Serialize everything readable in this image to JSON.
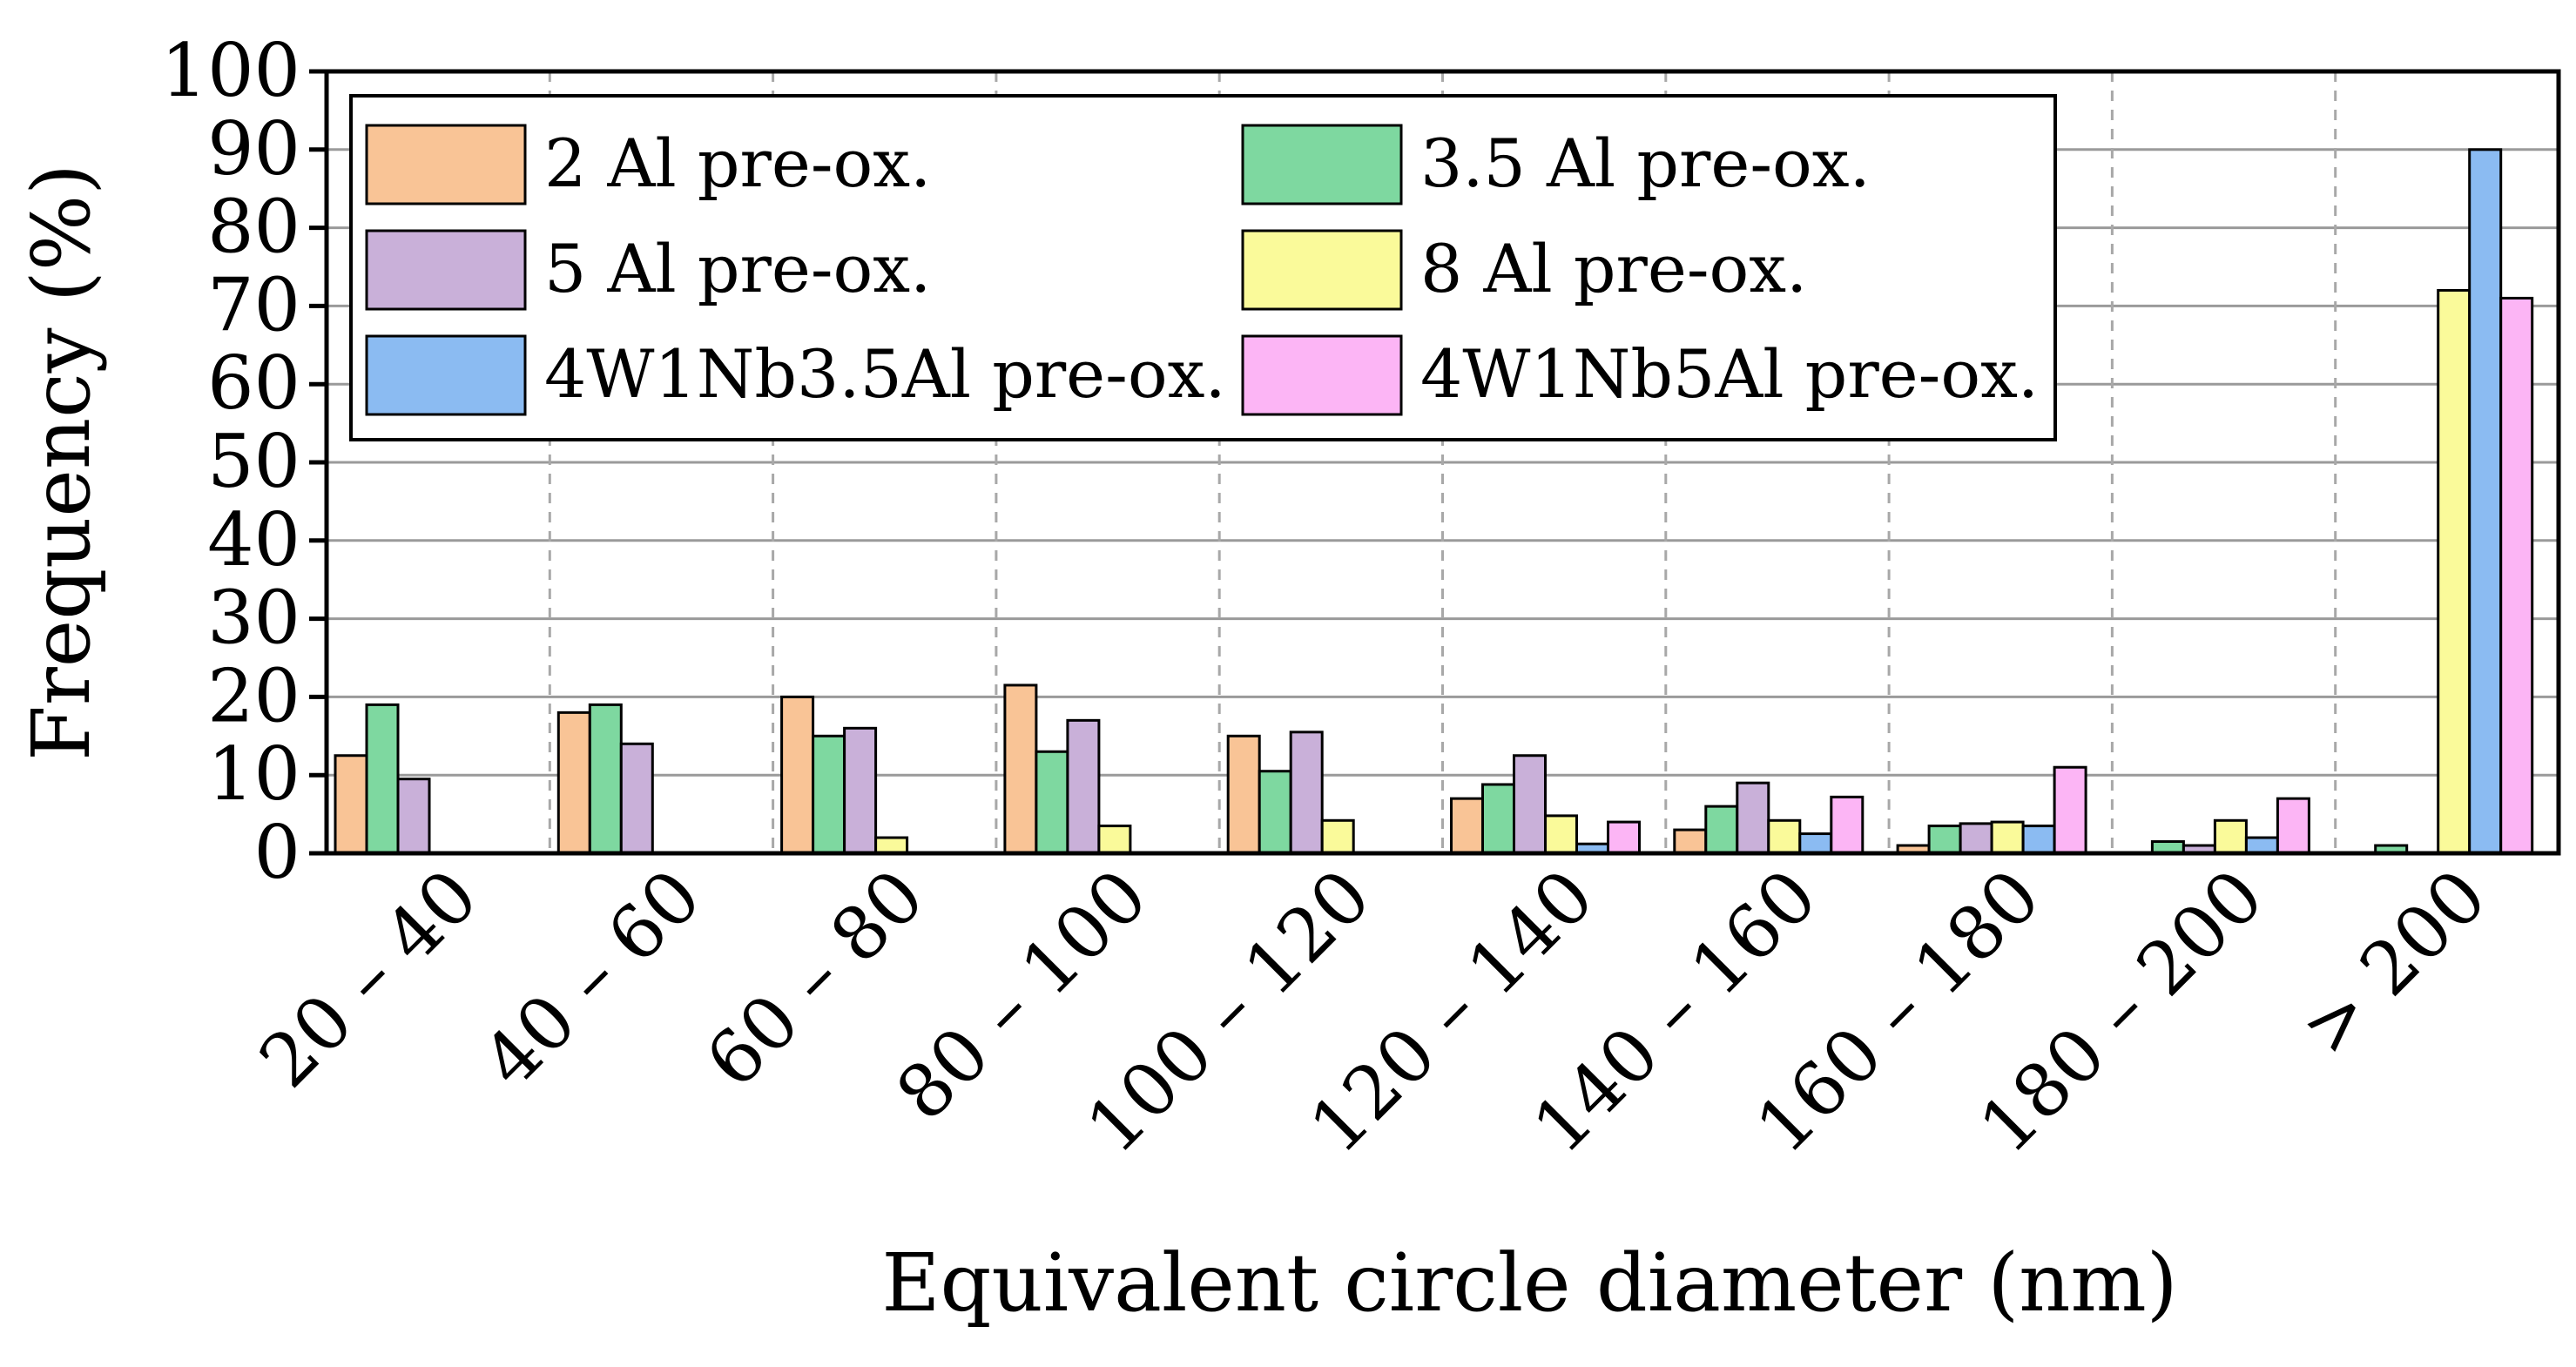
{
  "chart_data": {
    "type": "bar",
    "title": "",
    "xlabel": "Equivalent circle diameter (nm)",
    "ylabel": "Frequency (%)",
    "ylim": [
      0,
      100
    ],
    "yticks": [
      "0",
      "10",
      "20",
      "30",
      "40",
      "50",
      "60",
      "70",
      "80",
      "90",
      "100"
    ],
    "categories": [
      "20 – 40",
      "40 – 60",
      "60 – 80",
      "80 – 100",
      "100 – 120",
      "120 – 140",
      "140 – 160",
      "160 – 180",
      "180 – 200",
      "> 200"
    ],
    "grid": true,
    "legend_position": "top-left",
    "series": [
      {
        "name": "2 Al pre-ox.",
        "color": "#f9c496",
        "values": [
          12.5,
          18,
          20,
          21.5,
          15,
          7,
          3,
          1,
          0,
          0
        ]
      },
      {
        "name": "3.5 Al pre-ox.",
        "color": "#7ed8a0",
        "values": [
          19,
          19,
          15,
          13,
          10.5,
          8.8,
          6,
          3.5,
          1.5,
          1
        ]
      },
      {
        "name": "5 Al pre-ox.",
        "color": "#c9b0d9",
        "values": [
          9.5,
          14,
          16,
          17,
          15.5,
          12.5,
          9,
          3.8,
          1,
          0
        ]
      },
      {
        "name": "8 Al pre-ox.",
        "color": "#fafa9a",
        "values": [
          0,
          0,
          2,
          3.5,
          4.2,
          4.8,
          4.2,
          4,
          4.2,
          72
        ]
      },
      {
        "name": "4W1Nb3.5Al pre-ox.",
        "color": "#8bbbf2",
        "values": [
          0,
          0,
          0,
          0,
          0,
          1.2,
          2.5,
          3.5,
          2,
          90
        ]
      },
      {
        "name": "4W1Nb5Al pre-ox.",
        "color": "#fcb5f5",
        "values": [
          0,
          0,
          0,
          0,
          0,
          4,
          7.2,
          11,
          7,
          71
        ]
      }
    ]
  }
}
